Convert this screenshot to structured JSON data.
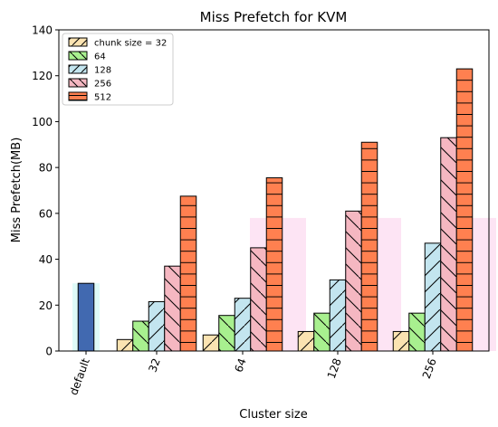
{
  "chart_data": {
    "type": "bar",
    "title": "Miss Prefetch for KVM",
    "xlabel": "Cluster size",
    "ylabel": "Miss Prefetch(MB)",
    "ylim": [
      0,
      140
    ],
    "yticks": [
      0,
      20,
      40,
      60,
      80,
      100,
      120,
      140
    ],
    "categories": [
      "default",
      "32",
      "64",
      "128",
      "256"
    ],
    "legend_position": "top-left",
    "default_bar": {
      "category": "default",
      "value": 29.5,
      "color": "#4169b0"
    },
    "series": [
      {
        "name": "chunk size = 32",
        "color": "#fbe3b1",
        "hatch": "/",
        "values": [
          null,
          5,
          7,
          8.5,
          8.5
        ]
      },
      {
        "name": "64",
        "color": "#a8f08f",
        "hatch": "\\",
        "values": [
          null,
          13,
          15.5,
          16.5,
          16.5
        ]
      },
      {
        "name": "128",
        "color": "#c3e5ef",
        "hatch": "/",
        "values": [
          null,
          21.5,
          23,
          31,
          47
        ]
      },
      {
        "name": "256",
        "color": "#f5b7c1",
        "hatch": "\\",
        "values": [
          null,
          37,
          45,
          61,
          93
        ]
      },
      {
        "name": "512",
        "color": "#ff8050",
        "hatch": "+",
        "values": [
          null,
          67.5,
          75.5,
          91,
          123
        ]
      }
    ],
    "background_bars": [
      {
        "category": "default",
        "value": 29.5,
        "color": "#dffbf8"
      },
      {
        "category": "64",
        "value": 58,
        "color": "#fde4f4"
      },
      {
        "category": "128",
        "value": 58,
        "color": "#fde4f4"
      },
      {
        "category": "256",
        "value": 58,
        "color": "#fde4f4"
      }
    ]
  }
}
